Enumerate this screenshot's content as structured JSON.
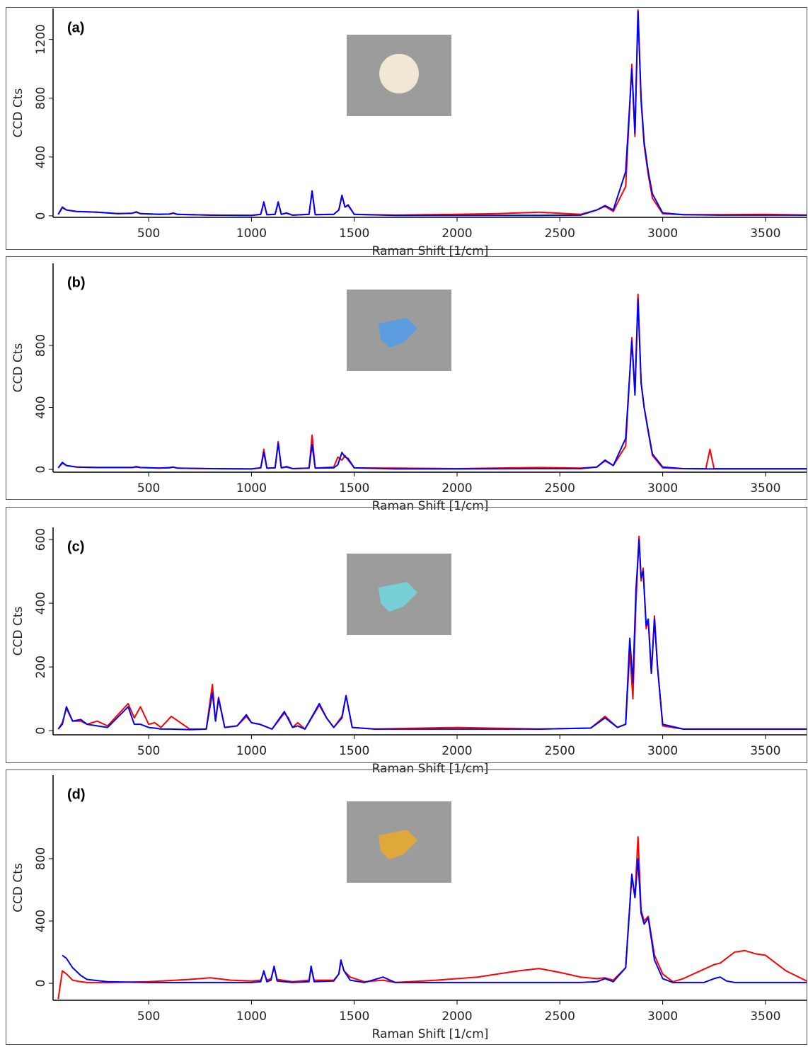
{
  "chart_data": [
    {
      "type": "line",
      "label": "(a)",
      "xlabel": "Raman Shift [1/cm]",
      "ylabel": "CCD Cts",
      "xlim": [
        35,
        3700
      ],
      "xticks": [
        500,
        1000,
        1500,
        2000,
        2500,
        3000,
        3500
      ],
      "ylim": [
        -10,
        1410
      ],
      "yticks": [
        0,
        400,
        800,
        1200
      ],
      "x": [
        60,
        80,
        100,
        150,
        250,
        350,
        420,
        440,
        460,
        550,
        600,
        620,
        640,
        800,
        1000,
        1045,
        1060,
        1075,
        1115,
        1130,
        1145,
        1170,
        1200,
        1280,
        1295,
        1310,
        1400,
        1425,
        1440,
        1455,
        1470,
        1500,
        1700,
        2000,
        2200,
        2400,
        2600,
        2680,
        2720,
        2760,
        2820,
        2850,
        2865,
        2880,
        2895,
        2910,
        2930,
        2950,
        3000,
        3100,
        3300,
        3500,
        3700
      ],
      "series": [
        {
          "color": "#ff0000",
          "values": [
            10,
            55,
            40,
            30,
            25,
            15,
            18,
            28,
            15,
            10,
            12,
            20,
            10,
            5,
            3,
            10,
            90,
            8,
            10,
            90,
            10,
            18,
            5,
            10,
            165,
            8,
            10,
            40,
            135,
            60,
            70,
            10,
            5,
            10,
            15,
            25,
            10,
            40,
            65,
            30,
            200,
            1030,
            540,
            1400,
            780,
            480,
            280,
            120,
            15,
            8,
            8,
            10,
            5
          ]
        },
        {
          "color": "#0000ff",
          "values": [
            10,
            60,
            40,
            30,
            25,
            15,
            18,
            25,
            15,
            10,
            12,
            18,
            10,
            5,
            3,
            10,
            95,
            8,
            10,
            95,
            10,
            20,
            5,
            10,
            170,
            8,
            10,
            40,
            140,
            60,
            75,
            10,
            3,
            3,
            3,
            3,
            5,
            40,
            70,
            40,
            300,
            1000,
            560,
            1390,
            800,
            500,
            300,
            150,
            20,
            8,
            5,
            5,
            5
          ]
        }
      ]
    },
    {
      "type": "line",
      "label": "(b)",
      "xlabel": "Raman Shift [1/cm]",
      "ylabel": "CCD Cts",
      "xlim": [
        35,
        3700
      ],
      "xticks": [
        500,
        1000,
        1500,
        2000,
        2500,
        3000,
        3500
      ],
      "ylim": [
        -18,
        1330
      ],
      "yticks": [
        0,
        400,
        800
      ],
      "x": [
        60,
        80,
        100,
        150,
        250,
        420,
        440,
        460,
        550,
        600,
        620,
        640,
        800,
        1000,
        1045,
        1060,
        1075,
        1115,
        1130,
        1145,
        1170,
        1200,
        1280,
        1295,
        1310,
        1400,
        1420,
        1440,
        1455,
        1470,
        1500,
        1700,
        2000,
        2400,
        2600,
        2680,
        2720,
        2760,
        2820,
        2850,
        2865,
        2880,
        2895,
        2910,
        2930,
        2950,
        3000,
        3100,
        3210,
        3230,
        3250,
        3500,
        3700
      ],
      "series": [
        {
          "color": "#ff0000",
          "values": [
            10,
            40,
            25,
            15,
            12,
            12,
            15,
            12,
            8,
            12,
            15,
            8,
            5,
            3,
            10,
            130,
            8,
            10,
            180,
            10,
            15,
            5,
            8,
            220,
            8,
            15,
            80,
            60,
            90,
            60,
            10,
            8,
            5,
            12,
            8,
            15,
            55,
            25,
            150,
            850,
            500,
            1130,
            560,
            400,
            240,
            90,
            10,
            5,
            5,
            130,
            5,
            5,
            5
          ]
        },
        {
          "color": "#0000ff",
          "values": [
            10,
            45,
            25,
            15,
            12,
            12,
            18,
            12,
            8,
            10,
            15,
            8,
            5,
            3,
            10,
            110,
            8,
            10,
            170,
            10,
            18,
            5,
            8,
            160,
            8,
            10,
            30,
            110,
            80,
            70,
            10,
            3,
            3,
            5,
            5,
            15,
            60,
            25,
            200,
            830,
            480,
            1100,
            560,
            400,
            250,
            100,
            15,
            5,
            3,
            3,
            3,
            3,
            3
          ]
        }
      ]
    },
    {
      "type": "line",
      "label": "(c)",
      "xlabel": "Raman Shift [1/cm]",
      "ylabel": "CCD Cts",
      "xlim": [
        35,
        3700
      ],
      "xticks": [
        500,
        1000,
        1500,
        2000,
        2500,
        3000,
        3500
      ],
      "ylim": [
        -13,
        638
      ],
      "yticks": [
        0,
        200,
        400,
        600
      ],
      "x": [
        60,
        80,
        100,
        130,
        170,
        200,
        250,
        300,
        400,
        430,
        460,
        500,
        530,
        560,
        610,
        700,
        780,
        810,
        825,
        840,
        870,
        930,
        975,
        1000,
        1040,
        1100,
        1160,
        1180,
        1200,
        1225,
        1260,
        1330,
        1365,
        1400,
        1440,
        1460,
        1490,
        1600,
        2000,
        2400,
        2650,
        2720,
        2780,
        2820,
        2840,
        2855,
        2870,
        2885,
        2895,
        2905,
        2920,
        2930,
        2945,
        2960,
        2975,
        3000,
        3100,
        3500,
        3700
      ],
      "series": [
        {
          "color": "#ff0000",
          "values": [
            5,
            25,
            70,
            30,
            30,
            20,
            30,
            15,
            85,
            40,
            75,
            20,
            25,
            10,
            45,
            5,
            5,
            145,
            30,
            105,
            10,
            15,
            45,
            25,
            20,
            5,
            55,
            40,
            10,
            25,
            5,
            80,
            40,
            10,
            45,
            110,
            10,
            5,
            10,
            5,
            8,
            45,
            10,
            20,
            250,
            100,
            400,
            610,
            470,
            510,
            320,
            350,
            180,
            360,
            200,
            15,
            5,
            5,
            5
          ]
        },
        {
          "color": "#0000ff",
          "values": [
            5,
            20,
            75,
            30,
            35,
            20,
            15,
            10,
            75,
            20,
            20,
            10,
            8,
            5,
            5,
            3,
            5,
            120,
            30,
            100,
            10,
            15,
            50,
            25,
            20,
            5,
            60,
            35,
            10,
            15,
            5,
            85,
            40,
            10,
            40,
            110,
            10,
            5,
            5,
            5,
            8,
            40,
            10,
            20,
            290,
            150,
            440,
            600,
            480,
            500,
            330,
            350,
            180,
            350,
            200,
            20,
            5,
            5,
            5
          ]
        }
      ]
    },
    {
      "type": "line",
      "label": "(d)",
      "xlabel": "Raman Shift [1/cm]",
      "ylabel": "CCD Cts",
      "xlim": [
        35,
        3700
      ],
      "xticks": [
        500,
        1000,
        1500,
        2000,
        2500,
        3000,
        3500
      ],
      "ylim": [
        -109,
        1336
      ],
      "yticks": [
        0,
        400,
        800
      ],
      "x": [
        60,
        80,
        100,
        130,
        170,
        200,
        300,
        500,
        700,
        800,
        900,
        1000,
        1045,
        1060,
        1075,
        1095,
        1110,
        1125,
        1200,
        1280,
        1290,
        1305,
        1400,
        1425,
        1435,
        1450,
        1480,
        1550,
        1640,
        1700,
        1900,
        2100,
        2200,
        2300,
        2400,
        2500,
        2600,
        2680,
        2720,
        2760,
        2820,
        2850,
        2865,
        2880,
        2895,
        2910,
        2930,
        2960,
        3000,
        3050,
        3100,
        3200,
        3250,
        3280,
        3310,
        3350,
        3400,
        3450,
        3500,
        3600,
        3700
      ],
      "series": [
        {
          "color": "#ff0000",
          "values": [
            -100,
            80,
            60,
            20,
            10,
            5,
            5,
            10,
            25,
            35,
            20,
            15,
            20,
            70,
            20,
            30,
            100,
            25,
            10,
            20,
            100,
            20,
            20,
            60,
            140,
            80,
            40,
            10,
            20,
            5,
            20,
            40,
            60,
            80,
            95,
            70,
            40,
            30,
            35,
            20,
            100,
            690,
            550,
            940,
            470,
            400,
            430,
            180,
            60,
            10,
            30,
            90,
            120,
            130,
            160,
            200,
            210,
            190,
            180,
            80,
            15
          ]
        },
        {
          "color": "#0000ff",
          "values": [
            null,
            180,
            160,
            100,
            50,
            25,
            10,
            5,
            5,
            5,
            5,
            5,
            10,
            80,
            10,
            20,
            110,
            15,
            5,
            10,
            110,
            10,
            15,
            60,
            150,
            80,
            20,
            5,
            40,
            5,
            5,
            5,
            5,
            5,
            5,
            5,
            5,
            10,
            30,
            10,
            100,
            700,
            550,
            800,
            450,
            380,
            420,
            150,
            30,
            5,
            5,
            5,
            30,
            40,
            15,
            5,
            5,
            5,
            5,
            5,
            5
          ]
        }
      ]
    }
  ]
}
